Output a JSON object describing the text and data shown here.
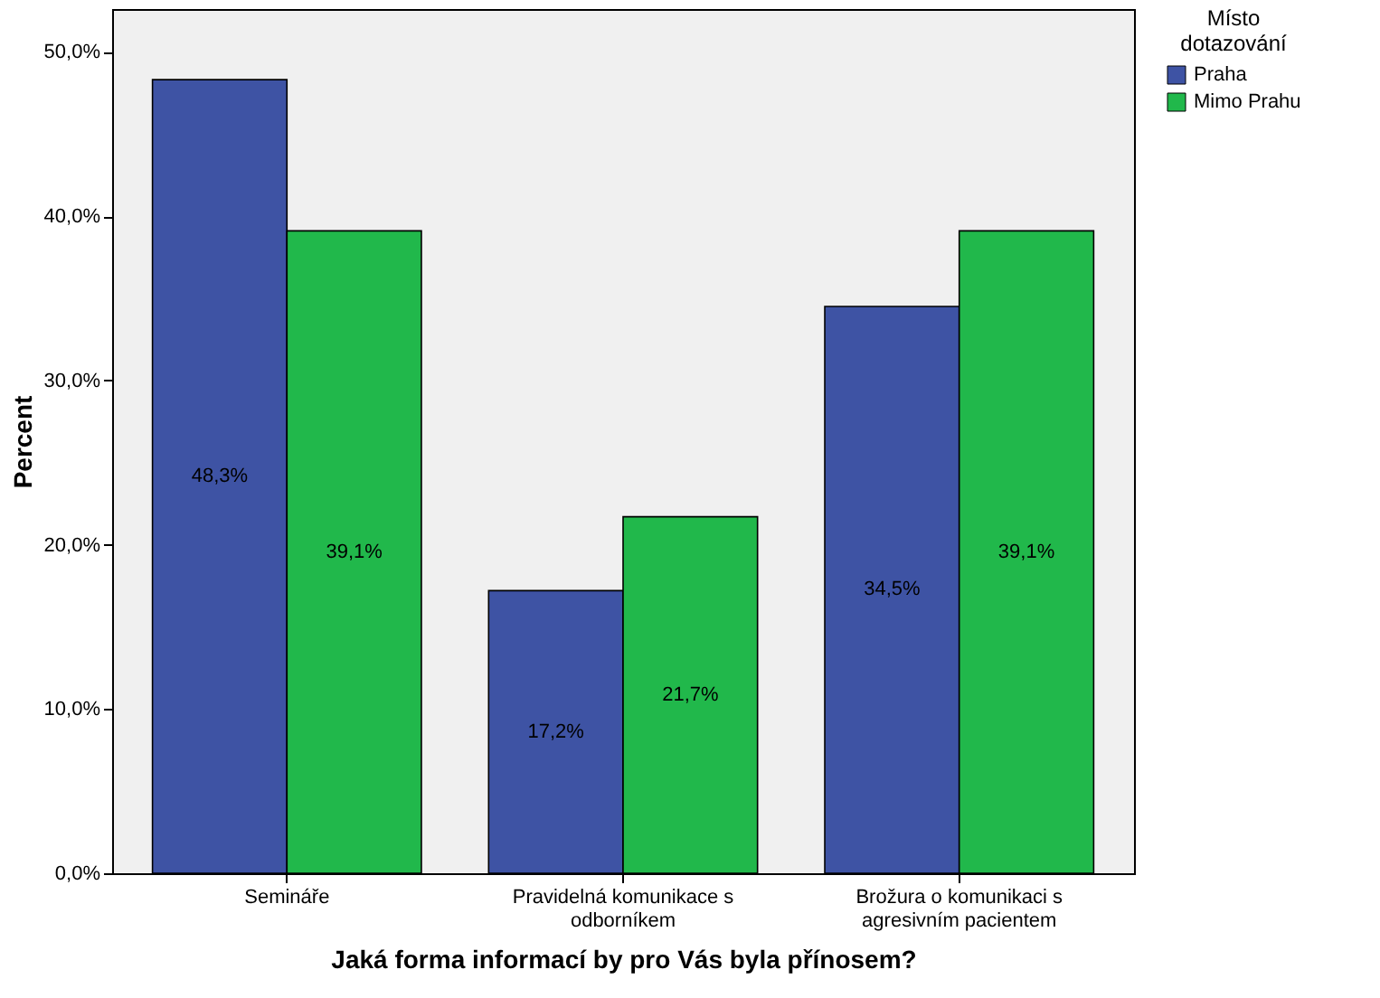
{
  "chart_data": {
    "type": "bar",
    "xlabel": "Jaká forma informací by pro Vás byla přínosem?",
    "ylabel": "Percent",
    "legend_title": "Místo dotazování",
    "legend": "right",
    "categories": [
      "Semináře",
      "Pravidelná komunikace s odborníkem",
      "Brožura o komunikaci s agresivním pacientem"
    ],
    "series": [
      {
        "name": "Praha",
        "color": "#3e53a4",
        "values": [
          48.3,
          17.2,
          34.5
        ],
        "value_labels": [
          "48,3%",
          "17,2%",
          "34,5%"
        ]
      },
      {
        "name": "Mimo Prahu",
        "color": "#21b84b",
        "values": [
          39.1,
          21.7,
          39.1
        ],
        "value_labels": [
          "39,1%",
          "21,7%",
          "39,1%"
        ]
      }
    ],
    "ylim": [
      0,
      52.6
    ],
    "yticks": [
      {
        "value": 0,
        "label": "0,0%"
      },
      {
        "value": 10,
        "label": "10,0%"
      },
      {
        "value": 20,
        "label": "20,0%"
      },
      {
        "value": 30,
        "label": "30,0%"
      },
      {
        "value": 40,
        "label": "40,0%"
      },
      {
        "value": 50,
        "label": "50,0%"
      }
    ]
  }
}
